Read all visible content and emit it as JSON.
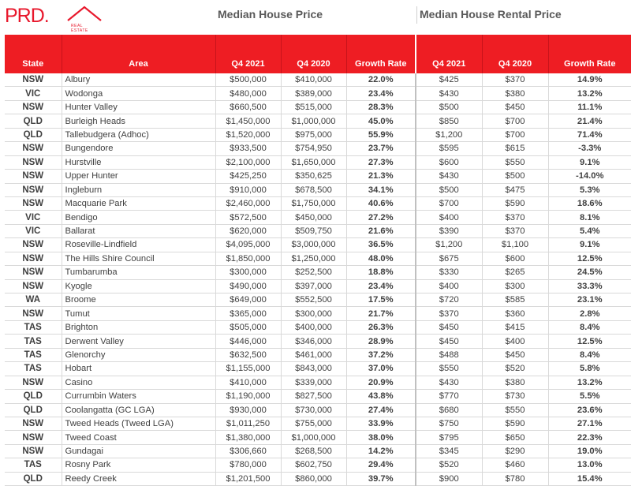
{
  "logo": {
    "text": "PRD.",
    "subtext": "REAL ESTATE",
    "brand_color": "#e8182c"
  },
  "groups": {
    "house": "Median House Price",
    "rental": "Median House Rental Price"
  },
  "headers": [
    "State",
    "Area",
    "Q4 2021",
    "Q4 2020",
    "Growth Rate",
    "Q4 2021",
    "Q4 2020",
    "Growth Rate"
  ],
  "rows": [
    [
      "NSW",
      "Albury",
      "$500,000",
      "$410,000",
      "22.0%",
      "$425",
      "$370",
      "14.9%"
    ],
    [
      "VIC",
      "Wodonga",
      "$480,000",
      "$389,000",
      "23.4%",
      "$430",
      "$380",
      "13.2%"
    ],
    [
      "NSW",
      "Hunter Valley",
      "$660,500",
      "$515,000",
      "28.3%",
      "$500",
      "$450",
      "11.1%"
    ],
    [
      "QLD",
      "Burleigh Heads",
      "$1,450,000",
      "$1,000,000",
      "45.0%",
      "$850",
      "$700",
      "21.4%"
    ],
    [
      "QLD",
      "Tallebudgera (Adhoc)",
      "$1,520,000",
      "$975,000",
      "55.9%",
      "$1,200",
      "$700",
      "71.4%"
    ],
    [
      "NSW",
      "Bungendore",
      "$933,500",
      "$754,950",
      "23.7%",
      "$595",
      "$615",
      "-3.3%"
    ],
    [
      "NSW",
      "Hurstville",
      "$2,100,000",
      "$1,650,000",
      "27.3%",
      "$600",
      "$550",
      "9.1%"
    ],
    [
      "NSW",
      "Upper Hunter",
      "$425,250",
      "$350,625",
      "21.3%",
      "$430",
      "$500",
      "-14.0%"
    ],
    [
      "NSW",
      "Ingleburn",
      "$910,000",
      "$678,500",
      "34.1%",
      "$500",
      "$475",
      "5.3%"
    ],
    [
      "NSW",
      "Macquarie Park",
      "$2,460,000",
      "$1,750,000",
      "40.6%",
      "$700",
      "$590",
      "18.6%"
    ],
    [
      "VIC",
      "Bendigo",
      "$572,500",
      "$450,000",
      "27.2%",
      "$400",
      "$370",
      "8.1%"
    ],
    [
      "VIC",
      "Ballarat",
      "$620,000",
      "$509,750",
      "21.6%",
      "$390",
      "$370",
      "5.4%"
    ],
    [
      "NSW",
      "Roseville-Lindfield",
      "$4,095,000",
      "$3,000,000",
      "36.5%",
      "$1,200",
      "$1,100",
      "9.1%"
    ],
    [
      "NSW",
      "The Hills Shire Council",
      "$1,850,000",
      "$1,250,000",
      "48.0%",
      "$675",
      "$600",
      "12.5%"
    ],
    [
      "NSW",
      "Tumbarumba",
      "$300,000",
      "$252,500",
      "18.8%",
      "$330",
      "$265",
      "24.5%"
    ],
    [
      "NSW",
      "Kyogle",
      "$490,000",
      "$397,000",
      "23.4%",
      "$400",
      "$300",
      "33.3%"
    ],
    [
      "WA",
      "Broome",
      "$649,000",
      "$552,500",
      "17.5%",
      "$720",
      "$585",
      "23.1%"
    ],
    [
      "NSW",
      "Tumut",
      "$365,000",
      "$300,000",
      "21.7%",
      "$370",
      "$360",
      "2.8%"
    ],
    [
      "TAS",
      "Brighton",
      "$505,000",
      "$400,000",
      "26.3%",
      "$450",
      "$415",
      "8.4%"
    ],
    [
      "TAS",
      "Derwent Valley",
      "$446,000",
      "$346,000",
      "28.9%",
      "$450",
      "$400",
      "12.5%"
    ],
    [
      "TAS",
      "Glenorchy",
      "$632,500",
      "$461,000",
      "37.2%",
      "$488",
      "$450",
      "8.4%"
    ],
    [
      "TAS",
      "Hobart",
      "$1,155,000",
      "$843,000",
      "37.0%",
      "$550",
      "$520",
      "5.8%"
    ],
    [
      "NSW",
      "Casino",
      "$410,000",
      "$339,000",
      "20.9%",
      "$430",
      "$380",
      "13.2%"
    ],
    [
      "QLD",
      "Currumbin Waters",
      "$1,190,000",
      "$827,500",
      "43.8%",
      "$770",
      "$730",
      "5.5%"
    ],
    [
      "QLD",
      "Coolangatta (GC LGA)",
      "$930,000",
      "$730,000",
      "27.4%",
      "$680",
      "$550",
      "23.6%"
    ],
    [
      "NSW",
      "Tweed Heads (Tweed LGA)",
      "$1,011,250",
      "$755,000",
      "33.9%",
      "$750",
      "$590",
      "27.1%"
    ],
    [
      "NSW",
      "Tweed Coast",
      "$1,380,000",
      "$1,000,000",
      "38.0%",
      "$795",
      "$650",
      "22.3%"
    ],
    [
      "NSW",
      "Gundagai",
      "$306,660",
      "$268,500",
      "14.2%",
      "$345",
      "$290",
      "19.0%"
    ],
    [
      "TAS",
      "Rosny Park",
      "$780,000",
      "$602,750",
      "29.4%",
      "$520",
      "$460",
      "13.0%"
    ],
    [
      "QLD",
      "Reedy Creek",
      "$1,201,500",
      "$860,000",
      "39.7%",
      "$900",
      "$780",
      "15.4%"
    ]
  ]
}
